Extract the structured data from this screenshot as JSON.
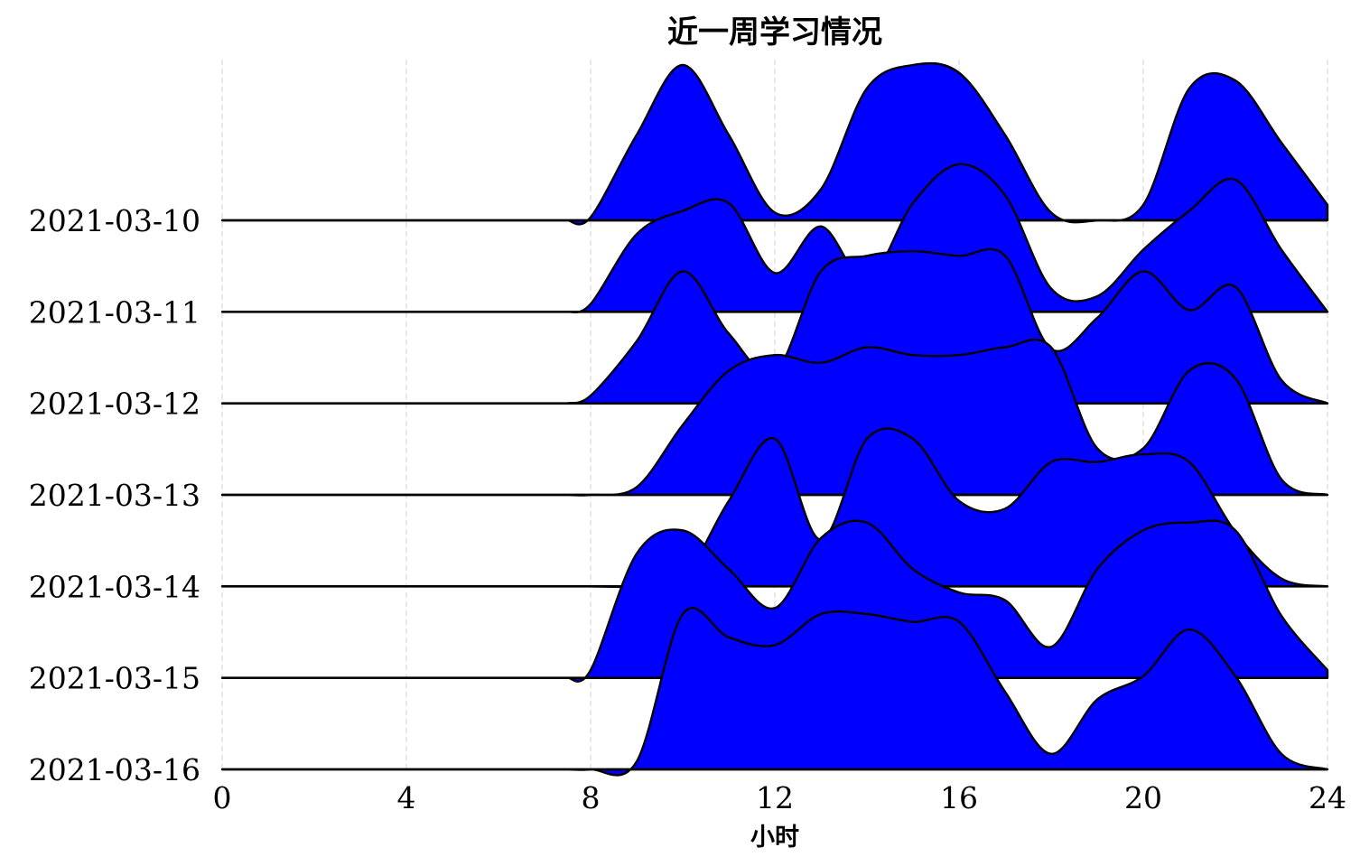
{
  "chart_data": {
    "type": "area",
    "title": "近一周学习情况",
    "xlabel": "小时",
    "ylabel": "",
    "xlim": [
      0,
      24
    ],
    "xticks": [
      0,
      4,
      8,
      12,
      16,
      20,
      24
    ],
    "grid": "vertical-dashed",
    "fill_color": "#0000ff",
    "line_color": "#000000",
    "x": [
      7.5,
      8,
      9,
      10,
      11,
      12,
      13,
      14,
      15,
      16,
      17,
      18,
      19,
      20,
      21,
      22,
      23,
      24
    ],
    "series": [
      {
        "name": "2021-03-10",
        "values": [
          0.0,
          0.02,
          0.55,
          1.0,
          0.55,
          0.05,
          0.2,
          0.85,
          1.0,
          0.95,
          0.55,
          0.05,
          0.0,
          0.1,
          0.85,
          0.9,
          0.5,
          0.1
        ]
      },
      {
        "name": "2021-03-11",
        "values": [
          0.0,
          0.05,
          0.5,
          0.65,
          0.7,
          0.25,
          0.55,
          0.2,
          0.7,
          0.95,
          0.75,
          0.15,
          0.1,
          0.4,
          0.65,
          0.85,
          0.4,
          0.0
        ]
      },
      {
        "name": "2021-03-12",
        "values": [
          0.0,
          0.05,
          0.4,
          0.85,
          0.45,
          0.2,
          0.85,
          0.95,
          0.98,
          0.95,
          0.95,
          0.35,
          0.55,
          0.85,
          0.6,
          0.75,
          0.15,
          0.0
        ]
      },
      {
        "name": "2021-03-13",
        "values": [
          0.0,
          0.0,
          0.05,
          0.45,
          0.8,
          0.9,
          0.85,
          0.95,
          0.9,
          0.9,
          0.95,
          0.95,
          0.3,
          0.3,
          0.8,
          0.75,
          0.1,
          0.0
        ]
      },
      {
        "name": "2021-03-14",
        "values": [
          0.0,
          0.0,
          0.0,
          0.05,
          0.55,
          0.95,
          0.3,
          0.95,
          0.95,
          0.55,
          0.5,
          0.8,
          0.8,
          0.85,
          0.8,
          0.35,
          0.05,
          0.0
        ]
      },
      {
        "name": "2021-03-15",
        "values": [
          0.0,
          0.05,
          0.8,
          0.95,
          0.7,
          0.45,
          0.9,
          1.0,
          0.7,
          0.55,
          0.5,
          0.2,
          0.7,
          0.95,
          1.0,
          0.95,
          0.4,
          0.05
        ]
      },
      {
        "name": "2021-03-16",
        "values": [
          0.0,
          0.0,
          0.05,
          1.0,
          0.85,
          0.8,
          1.0,
          1.0,
          0.95,
          0.95,
          0.5,
          0.1,
          0.45,
          0.6,
          0.9,
          0.6,
          0.1,
          0.0
        ]
      }
    ]
  }
}
